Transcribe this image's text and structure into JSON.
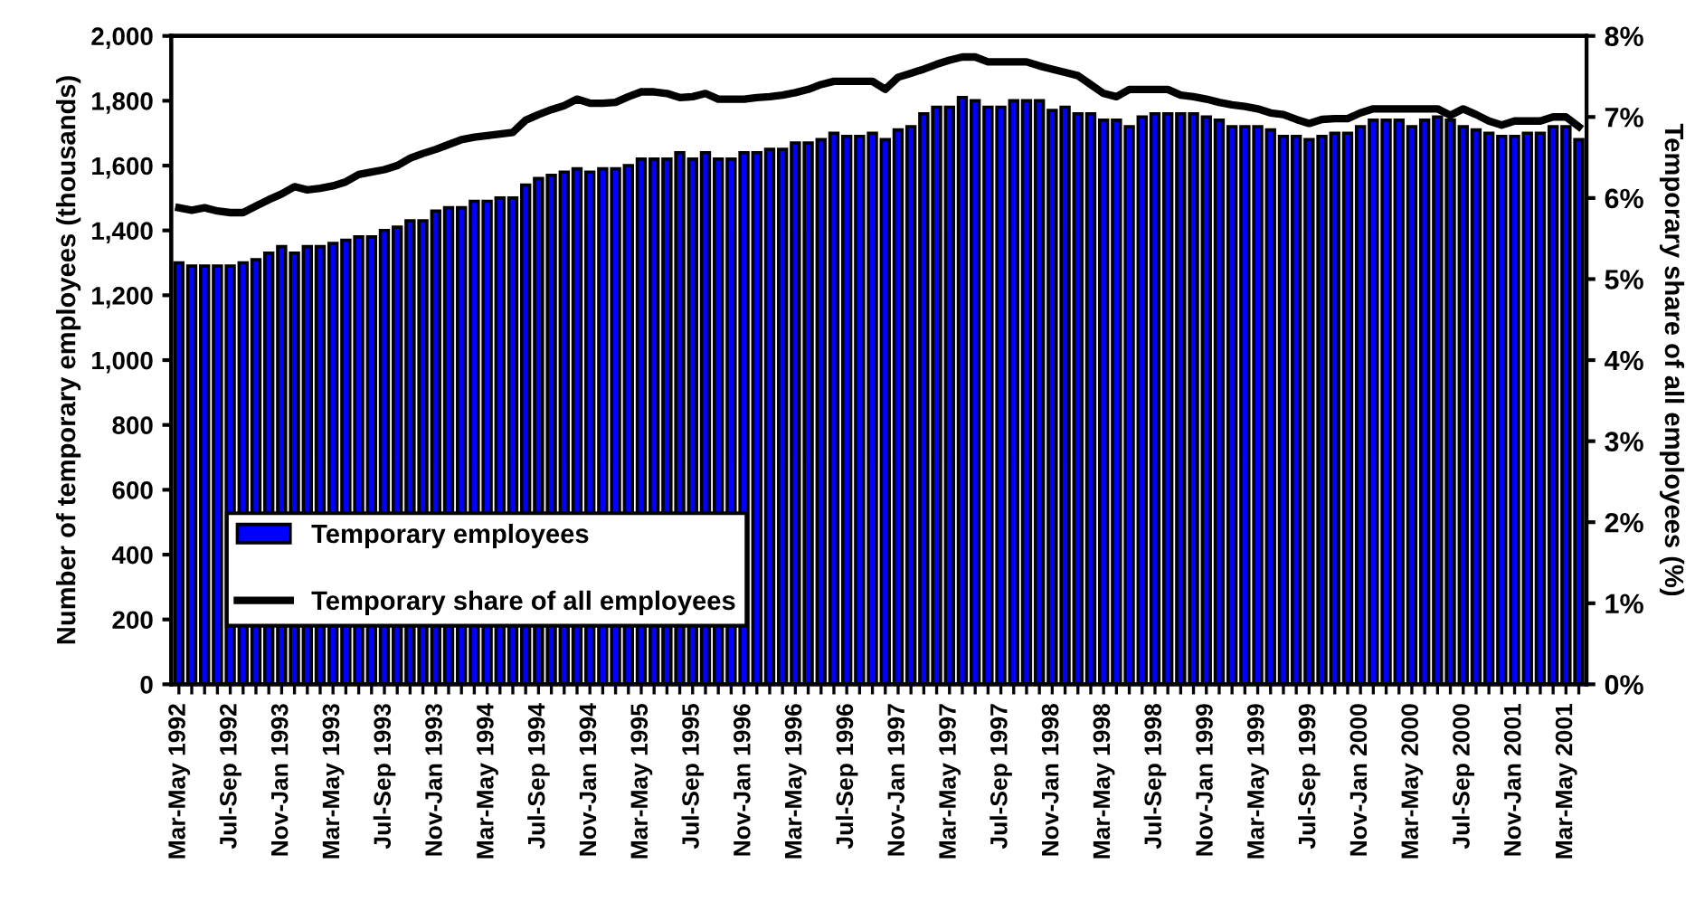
{
  "chart_data": {
    "type": "bar",
    "categories": [
      "Mar-May 1992",
      null,
      null,
      null,
      "Jul-Sep 1992",
      null,
      null,
      null,
      "Nov-Jan 1993",
      null,
      null,
      null,
      "Mar-May 1993",
      null,
      null,
      null,
      "Jul-Sep 1993",
      null,
      null,
      null,
      "Nov-Jan 1993",
      null,
      null,
      null,
      "Mar-May 1994",
      null,
      null,
      null,
      "Jul-Sep 1994",
      null,
      null,
      null,
      "Nov-Jan 1994",
      null,
      null,
      null,
      "Mar-May 1995",
      null,
      null,
      null,
      "Jul-Sep 1995",
      null,
      null,
      null,
      "Nov-Jan 1996",
      null,
      null,
      null,
      "Mar-May 1996",
      null,
      null,
      null,
      "Jul-Sep 1996",
      null,
      null,
      null,
      "Nov-Jan 1997",
      null,
      null,
      null,
      "Mar-May 1997",
      null,
      null,
      null,
      "Jul-Sep 1997",
      null,
      null,
      null,
      "Nov-Jan 1998",
      null,
      null,
      null,
      "Mar-May 1998",
      null,
      null,
      null,
      "Jul-Sep 1998",
      null,
      null,
      null,
      "Nov-Jan 1999",
      null,
      null,
      null,
      "Mar-May 1999",
      null,
      null,
      null,
      "Jul-Sep 1999",
      null,
      null,
      null,
      "Nov-Jan 2000",
      null,
      null,
      null,
      "Mar-May 2000",
      null,
      null,
      null,
      "Jul-Sep 2000",
      null,
      null,
      null,
      "Nov-Jan 2001",
      null,
      null,
      null,
      "Mar-May 2001",
      null
    ],
    "series": [
      {
        "name": "Temporary employees",
        "color": "#0000ff",
        "values": [
          1300,
          1290,
          1290,
          1290,
          1290,
          1300,
          1310,
          1330,
          1350,
          1330,
          1350,
          1350,
          1360,
          1370,
          1380,
          1380,
          1400,
          1410,
          1430,
          1430,
          1460,
          1470,
          1470,
          1490,
          1490,
          1500,
          1500,
          1540,
          1560,
          1570,
          1580,
          1590,
          1580,
          1590,
          1590,
          1600,
          1620,
          1620,
          1620,
          1640,
          1620,
          1640,
          1620,
          1620,
          1640,
          1640,
          1650,
          1650,
          1670,
          1670,
          1680,
          1700,
          1690,
          1690,
          1700,
          1680,
          1710,
          1720,
          1760,
          1780,
          1780,
          1810,
          1800,
          1780,
          1780,
          1800,
          1800,
          1800,
          1770,
          1780,
          1760,
          1760,
          1740,
          1740,
          1720,
          1750,
          1760,
          1760,
          1760,
          1760,
          1750,
          1740,
          1720,
          1720,
          1720,
          1710,
          1690,
          1690,
          1680,
          1690,
          1700,
          1700,
          1720,
          1740,
          1740,
          1740,
          1720,
          1740,
          1750,
          1740,
          1720,
          1710,
          1700,
          1690,
          1690,
          1700,
          1700,
          1720,
          1720,
          1680
        ]
      },
      {
        "name": "Temporary share of all employees",
        "type": "line",
        "axis": "y2",
        "color": "#000000",
        "values": [
          5.88,
          5.85,
          5.88,
          5.84,
          5.82,
          5.82,
          5.9,
          5.98,
          6.05,
          6.14,
          6.1,
          6.12,
          6.15,
          6.2,
          6.29,
          6.32,
          6.35,
          6.4,
          6.49,
          6.55,
          6.6,
          6.66,
          6.72,
          6.75,
          6.77,
          6.79,
          6.81,
          6.96,
          7.03,
          7.09,
          7.14,
          7.22,
          7.17,
          7.17,
          7.18,
          7.25,
          7.31,
          7.31,
          7.29,
          7.24,
          7.25,
          7.29,
          7.22,
          7.22,
          7.22,
          7.24,
          7.25,
          7.27,
          7.3,
          7.34,
          7.4,
          7.44,
          7.44,
          7.44,
          7.44,
          7.34,
          7.49,
          7.54,
          7.59,
          7.65,
          7.7,
          7.74,
          7.74,
          7.68,
          7.68,
          7.68,
          7.68,
          7.63,
          7.59,
          7.55,
          7.51,
          7.4,
          7.29,
          7.25,
          7.34,
          7.34,
          7.34,
          7.34,
          7.27,
          7.25,
          7.22,
          7.18,
          7.15,
          7.13,
          7.1,
          7.05,
          7.03,
          6.97,
          6.92,
          6.97,
          6.98,
          6.98,
          7.05,
          7.1,
          7.1,
          7.1,
          7.1,
          7.1,
          7.1,
          7.02,
          7.1,
          7.03,
          6.95,
          6.9,
          6.95,
          6.95,
          6.95,
          7.0,
          7.0,
          6.88
        ]
      }
    ],
    "ylabel": "Number of temporary employees (thousands)",
    "y2label": "Temporary share of all employees (%)",
    "ylim": [
      0,
      2000
    ],
    "yticks": [
      {
        "value": 0,
        "label": "0"
      },
      {
        "value": 200,
        "label": "200"
      },
      {
        "value": 400,
        "label": "400"
      },
      {
        "value": 600,
        "label": "600"
      },
      {
        "value": 800,
        "label": "800"
      },
      {
        "value": 1000,
        "label": "1,000"
      },
      {
        "value": 1200,
        "label": "1,200"
      },
      {
        "value": 1400,
        "label": "1,400"
      },
      {
        "value": 1600,
        "label": "1,600"
      },
      {
        "value": 1800,
        "label": "1,800"
      },
      {
        "value": 2000,
        "label": "2,000"
      }
    ],
    "y2lim": [
      0,
      8
    ],
    "y2ticks": [
      {
        "value": 0,
        "label": "0%"
      },
      {
        "value": 1,
        "label": "1%"
      },
      {
        "value": 2,
        "label": "2%"
      },
      {
        "value": 3,
        "label": "3%"
      },
      {
        "value": 4,
        "label": "4%"
      },
      {
        "value": 5,
        "label": "5%"
      },
      {
        "value": 6,
        "label": "6%"
      },
      {
        "value": 7,
        "label": "7%"
      },
      {
        "value": 8,
        "label": "8%"
      }
    ],
    "legend": "bottom left",
    "grid": false
  }
}
